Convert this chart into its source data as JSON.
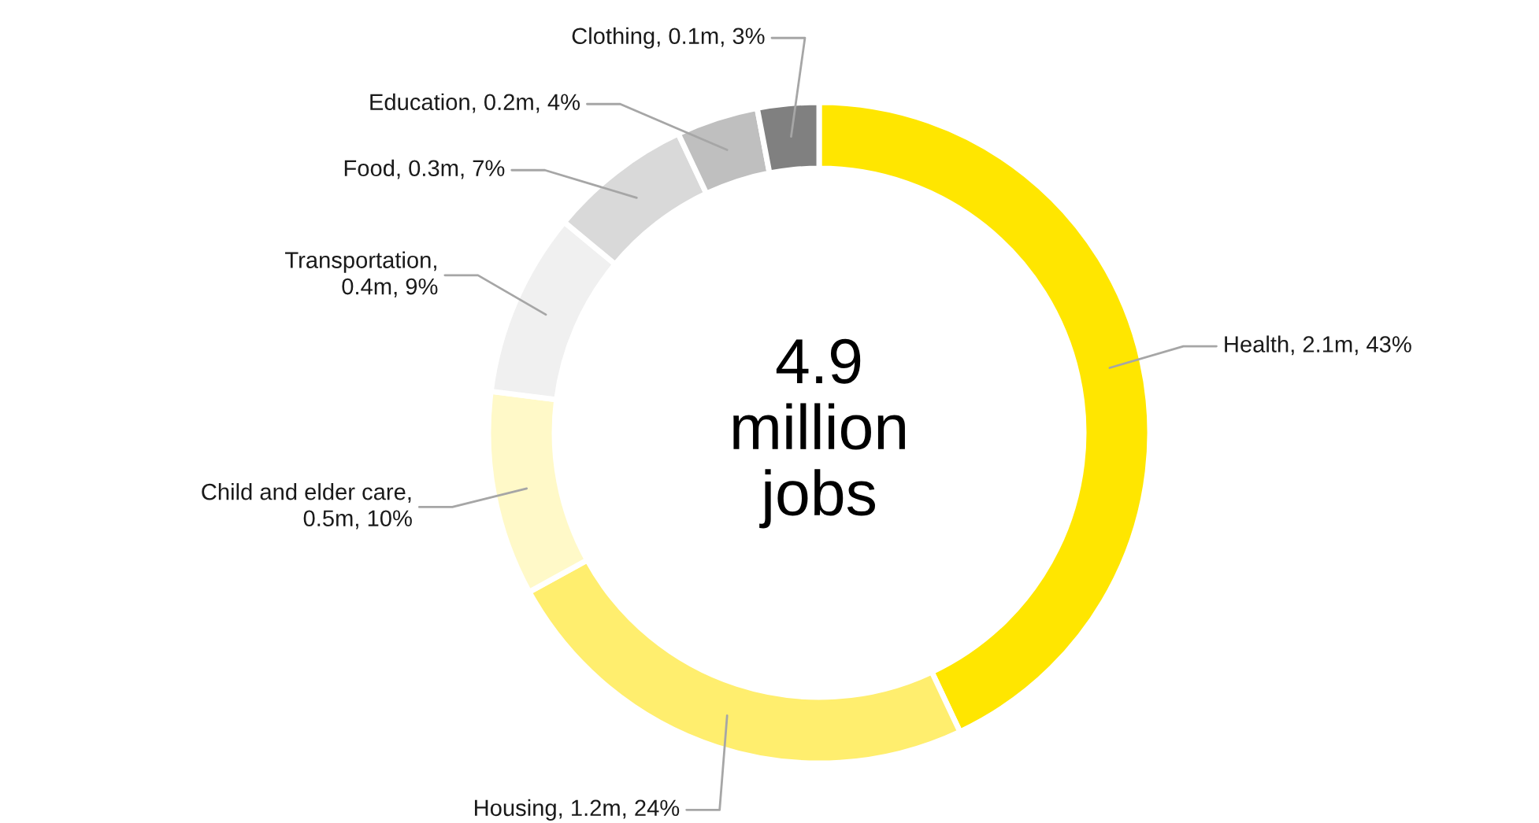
{
  "chart_data": {
    "type": "donut",
    "categories": [
      "Health, 2.1m, 43%",
      "Housing, 1.2m, 24%",
      "Child and elder care,\n0.5m, 10%",
      "Transportation,\n0.4m, 9%",
      "Food, 0.3m, 7%",
      "Education, 0.2m, 4%",
      "Clothing, 0.1m, 3%"
    ],
    "values": [
      43,
      24,
      10,
      9,
      7,
      4,
      3
    ],
    "colors": [
      "#ffe600",
      "#ffee6e",
      "#fff9c8",
      "#f0f0f0",
      "#d9d9d9",
      "#bfbfbf",
      "#808080"
    ],
    "annotations": [
      "4.9\nmillion\njobs"
    ]
  }
}
